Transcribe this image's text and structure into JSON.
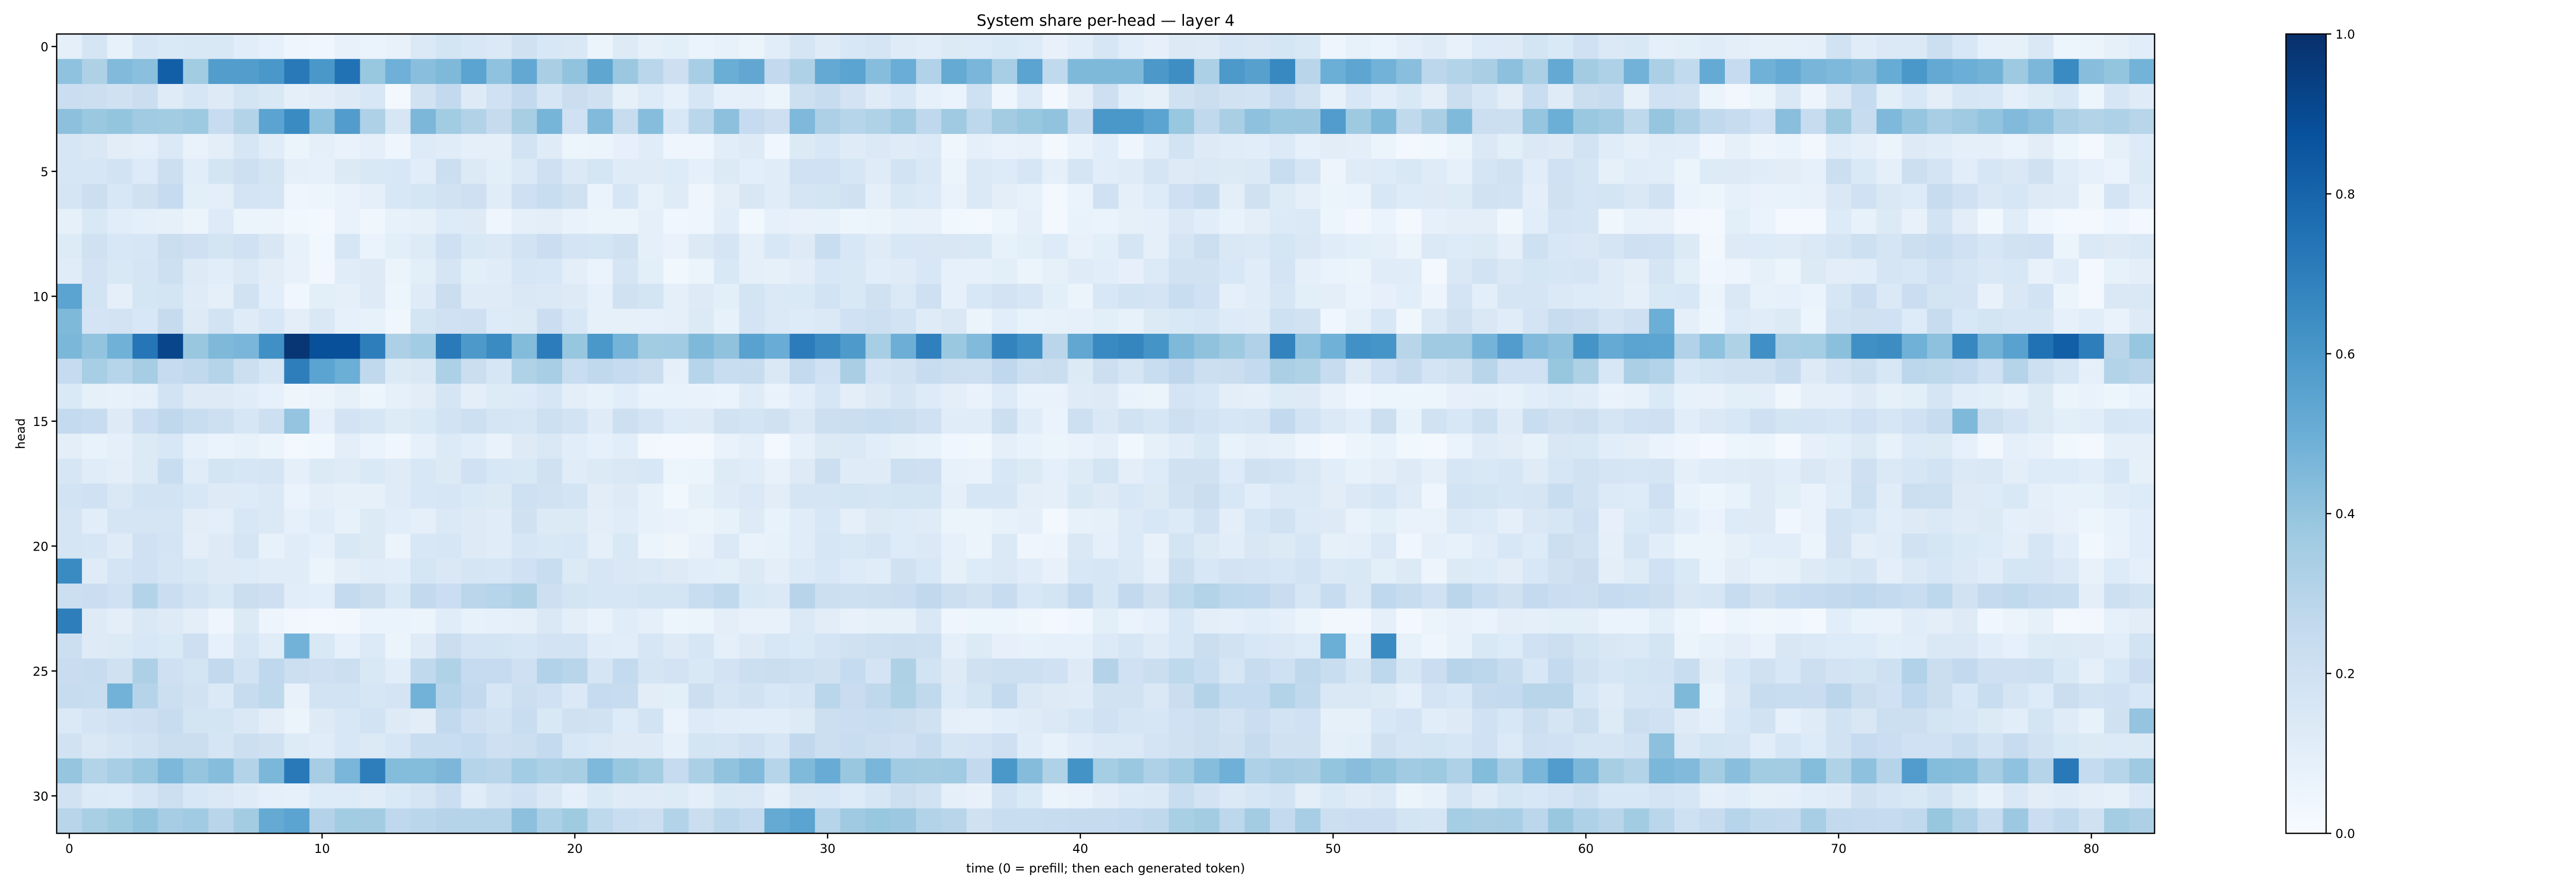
{
  "chart_data": {
    "type": "heatmap",
    "title": "System share per-head — layer 4",
    "xlabel": "time (0 = prefill; then each generated token)",
    "ylabel": "head",
    "n_cols": 83,
    "n_rows": 32,
    "xlim": [
      -0.5,
      82.5
    ],
    "ylim": [
      31.5,
      -0.5
    ],
    "x_ticks": [
      0,
      10,
      20,
      30,
      40,
      50,
      60,
      70,
      80
    ],
    "y_ticks": [
      0,
      5,
      10,
      15,
      20,
      25,
      30
    ],
    "colormap": "Blues",
    "color_low": "#f7fbff",
    "color_high": "#08306b",
    "colorbar": {
      "range": [
        0.0,
        1.0
      ],
      "ticks": [
        0.0,
        0.2,
        0.4,
        0.6,
        0.8,
        1.0
      ],
      "tick_labels": [
        "0.0",
        "0.2",
        "0.4",
        "0.6",
        "0.8",
        "1.0"
      ]
    },
    "row_baseline": [
      0.12,
      0.45,
      0.14,
      0.33,
      0.1,
      0.14,
      0.14,
      0.08,
      0.14,
      0.12,
      0.14,
      0.14,
      0.5,
      0.24,
      0.1,
      0.18,
      0.08,
      0.14,
      0.14,
      0.12,
      0.12,
      0.14,
      0.22,
      0.08,
      0.14,
      0.22,
      0.2,
      0.16,
      0.18,
      0.38,
      0.14,
      0.3
    ],
    "row_spread": [
      0.05,
      0.18,
      0.1,
      0.14,
      0.05,
      0.06,
      0.06,
      0.06,
      0.06,
      0.05,
      0.06,
      0.06,
      0.2,
      0.1,
      0.04,
      0.06,
      0.04,
      0.05,
      0.05,
      0.05,
      0.05,
      0.05,
      0.07,
      0.04,
      0.06,
      0.08,
      0.08,
      0.06,
      0.06,
      0.1,
      0.05,
      0.08
    ],
    "highlights": [
      [
        1,
        4,
        0.82
      ],
      [
        1,
        8,
        0.6
      ],
      [
        1,
        9,
        0.72
      ],
      [
        1,
        10,
        0.6
      ],
      [
        1,
        11,
        0.75
      ],
      [
        1,
        16,
        0.55
      ],
      [
        1,
        31,
        0.55
      ],
      [
        1,
        35,
        0.52
      ],
      [
        1,
        40,
        0.45
      ],
      [
        1,
        41,
        0.45
      ],
      [
        1,
        42,
        0.45
      ],
      [
        1,
        50,
        0.5
      ],
      [
        1,
        57,
        0.42
      ],
      [
        1,
        62,
        0.48
      ],
      [
        1,
        73,
        0.6
      ],
      [
        1,
        79,
        0.65
      ],
      [
        3,
        8,
        0.55
      ],
      [
        3,
        9,
        0.65
      ],
      [
        3,
        11,
        0.58
      ],
      [
        3,
        41,
        0.6
      ],
      [
        3,
        42,
        0.6
      ],
      [
        3,
        43,
        0.55
      ],
      [
        3,
        50,
        0.58
      ],
      [
        3,
        52,
        0.45
      ],
      [
        11,
        0,
        0.45
      ],
      [
        10,
        0,
        0.55
      ],
      [
        11,
        63,
        0.5
      ],
      [
        12,
        4,
        0.92
      ],
      [
        12,
        9,
        0.98
      ],
      [
        12,
        10,
        0.88
      ],
      [
        12,
        11,
        0.88
      ],
      [
        12,
        12,
        0.7
      ],
      [
        12,
        17,
        0.65
      ],
      [
        12,
        21,
        0.6
      ],
      [
        12,
        57,
        0.58
      ],
      [
        12,
        62,
        0.55
      ],
      [
        12,
        78,
        0.75
      ],
      [
        12,
        79,
        0.82
      ],
      [
        12,
        80,
        0.7
      ],
      [
        13,
        9,
        0.7
      ],
      [
        13,
        10,
        0.55
      ],
      [
        13,
        11,
        0.5
      ],
      [
        15,
        75,
        0.45
      ],
      [
        15,
        9,
        0.4
      ],
      [
        21,
        0,
        0.65
      ],
      [
        23,
        0,
        0.7
      ],
      [
        24,
        9,
        0.48
      ],
      [
        24,
        50,
        0.5
      ],
      [
        24,
        52,
        0.65
      ],
      [
        26,
        2,
        0.48
      ],
      [
        26,
        14,
        0.48
      ],
      [
        26,
        64,
        0.45
      ],
      [
        27,
        82,
        0.4
      ],
      [
        28,
        63,
        0.42
      ],
      [
        29,
        9,
        0.72
      ],
      [
        29,
        12,
        0.7
      ],
      [
        29,
        37,
        0.6
      ],
      [
        29,
        40,
        0.62
      ],
      [
        29,
        59,
        0.58
      ],
      [
        29,
        73,
        0.58
      ],
      [
        29,
        79,
        0.72
      ],
      [
        31,
        8,
        0.52
      ],
      [
        31,
        9,
        0.55
      ],
      [
        31,
        28,
        0.52
      ],
      [
        31,
        29,
        0.55
      ]
    ]
  }
}
